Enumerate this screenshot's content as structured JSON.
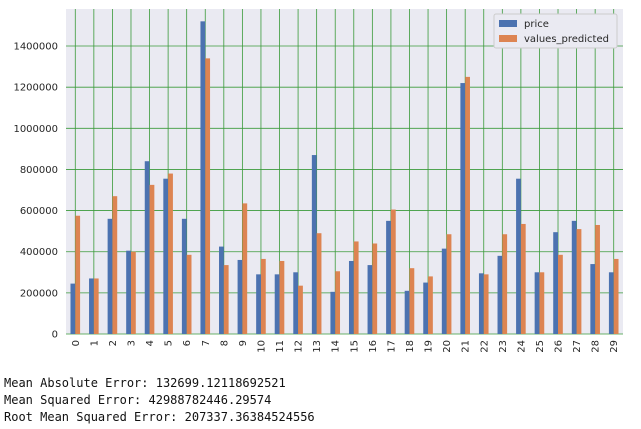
{
  "chart_data": {
    "type": "bar",
    "title": "",
    "xlabel": "",
    "ylabel": "",
    "categories": [
      "0",
      "1",
      "2",
      "3",
      "4",
      "5",
      "6",
      "7",
      "8",
      "9",
      "10",
      "11",
      "12",
      "13",
      "14",
      "15",
      "16",
      "17",
      "18",
      "19",
      "20",
      "21",
      "22",
      "23",
      "24",
      "25",
      "26",
      "27",
      "28",
      "29"
    ],
    "series": [
      {
        "name": "price",
        "color": "#4c72b0",
        "values": [
          245000,
          270000,
          560000,
          405000,
          840000,
          755000,
          560000,
          1520000,
          425000,
          360000,
          290000,
          290000,
          300000,
          870000,
          205000,
          355000,
          335000,
          550000,
          210000,
          250000,
          415000,
          1220000,
          295000,
          380000,
          755000,
          300000,
          495000,
          550000,
          340000,
          300000
        ]
      },
      {
        "name": "values_predicted",
        "color": "#dd8452",
        "values": [
          575000,
          270000,
          670000,
          400000,
          725000,
          780000,
          385000,
          1340000,
          335000,
          635000,
          365000,
          355000,
          235000,
          490000,
          305000,
          450000,
          440000,
          605000,
          320000,
          280000,
          485000,
          1250000,
          290000,
          485000,
          535000,
          300000,
          385000,
          510000,
          530000,
          365000
        ]
      }
    ],
    "yticks": [
      0,
      200000,
      400000,
      600000,
      800000,
      1000000,
      1200000,
      1400000
    ],
    "ytick_labels": [
      "0",
      "200000",
      "400000",
      "600000",
      "800000",
      "1000000",
      "1200000",
      "1400000"
    ],
    "ylim": [
      0,
      1580000
    ],
    "grid": true,
    "grid_color": "#3a9a3a",
    "background": "#eaeaf2",
    "legend_position": "top-right"
  },
  "metrics": {
    "mae": "Mean Absolute Error: 132699.12118692521",
    "mse": "Mean Squared Error: 42988782446.29574",
    "rmse": "Root Mean Squared Error: 207337.36384524556"
  }
}
